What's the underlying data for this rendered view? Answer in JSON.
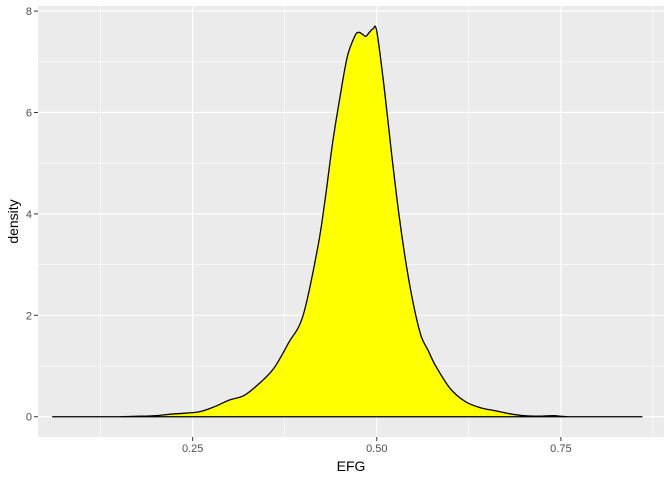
{
  "chart_data": {
    "type": "area",
    "xlabel": "EFG",
    "ylabel": "density",
    "xlim": [
      0.04,
      0.89
    ],
    "ylim": [
      -0.4,
      8.1
    ],
    "x_ticks": [
      {
        "value": 0.25,
        "label": "0.25"
      },
      {
        "value": 0.5,
        "label": "0.50"
      },
      {
        "value": 0.75,
        "label": "0.75"
      }
    ],
    "y_ticks": [
      {
        "value": 0,
        "label": "0"
      },
      {
        "value": 2,
        "label": "2"
      },
      {
        "value": 4,
        "label": "4"
      },
      {
        "value": 6,
        "label": "6"
      },
      {
        "value": 8,
        "label": "8"
      }
    ],
    "x_minor": [
      0.125,
      0.375,
      0.625,
      0.875
    ],
    "y_minor": [
      1,
      3,
      5,
      7
    ],
    "grid": true,
    "fill_color": "#ffff00",
    "line_color": "#000000",
    "panel_color": "#ebebeb",
    "x": [
      0.06,
      0.1,
      0.15,
      0.18,
      0.2,
      0.22,
      0.24,
      0.26,
      0.28,
      0.3,
      0.32,
      0.34,
      0.36,
      0.38,
      0.4,
      0.42,
      0.43,
      0.44,
      0.45,
      0.46,
      0.47,
      0.475,
      0.48,
      0.485,
      0.49,
      0.495,
      0.5,
      0.51,
      0.52,
      0.53,
      0.54,
      0.55,
      0.56,
      0.57,
      0.58,
      0.6,
      0.62,
      0.64,
      0.66,
      0.68,
      0.7,
      0.72,
      0.74,
      0.76,
      0.8,
      0.86
    ],
    "y": [
      0.0,
      0.0,
      0.0,
      0.01,
      0.02,
      0.05,
      0.07,
      0.1,
      0.2,
      0.33,
      0.42,
      0.65,
      0.95,
      1.45,
      2.0,
      3.35,
      4.3,
      5.4,
      6.3,
      7.1,
      7.5,
      7.58,
      7.55,
      7.5,
      7.58,
      7.65,
      7.6,
      6.5,
      5.2,
      4.0,
      3.0,
      2.2,
      1.6,
      1.3,
      1.0,
      0.55,
      0.3,
      0.18,
      0.12,
      0.06,
      0.02,
      0.01,
      0.02,
      0.0,
      0.0,
      0.0
    ]
  }
}
